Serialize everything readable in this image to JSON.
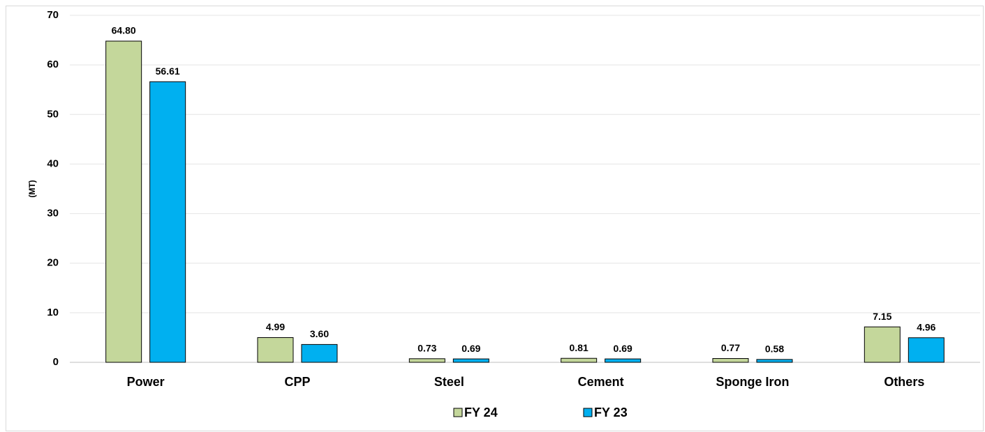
{
  "chart_data": {
    "type": "bar",
    "y_label": "(MT)",
    "categories": [
      "Power",
      "CPP",
      "Steel",
      "Cement",
      "Sponge Iron",
      "Others"
    ],
    "series": [
      {
        "name": "FY 24",
        "color": "#c4d79b",
        "values": [
          64.8,
          4.99,
          0.73,
          0.81,
          0.77,
          7.15
        ],
        "value_labels": [
          "64.80",
          "4.99",
          "0.73",
          "0.81",
          "0.77",
          "7.15"
        ]
      },
      {
        "name": "FY 23",
        "color": "#00b0f0",
        "values": [
          56.61,
          3.6,
          0.69,
          0.69,
          0.58,
          4.96
        ],
        "value_labels": [
          "56.61",
          "3.60",
          "0.69",
          "0.69",
          "0.58",
          "4.96"
        ]
      }
    ],
    "ylim": [
      0,
      70
    ],
    "yticks": [
      0,
      10,
      20,
      30,
      40,
      50,
      60,
      70
    ],
    "grid": true,
    "legend": "bottom"
  }
}
